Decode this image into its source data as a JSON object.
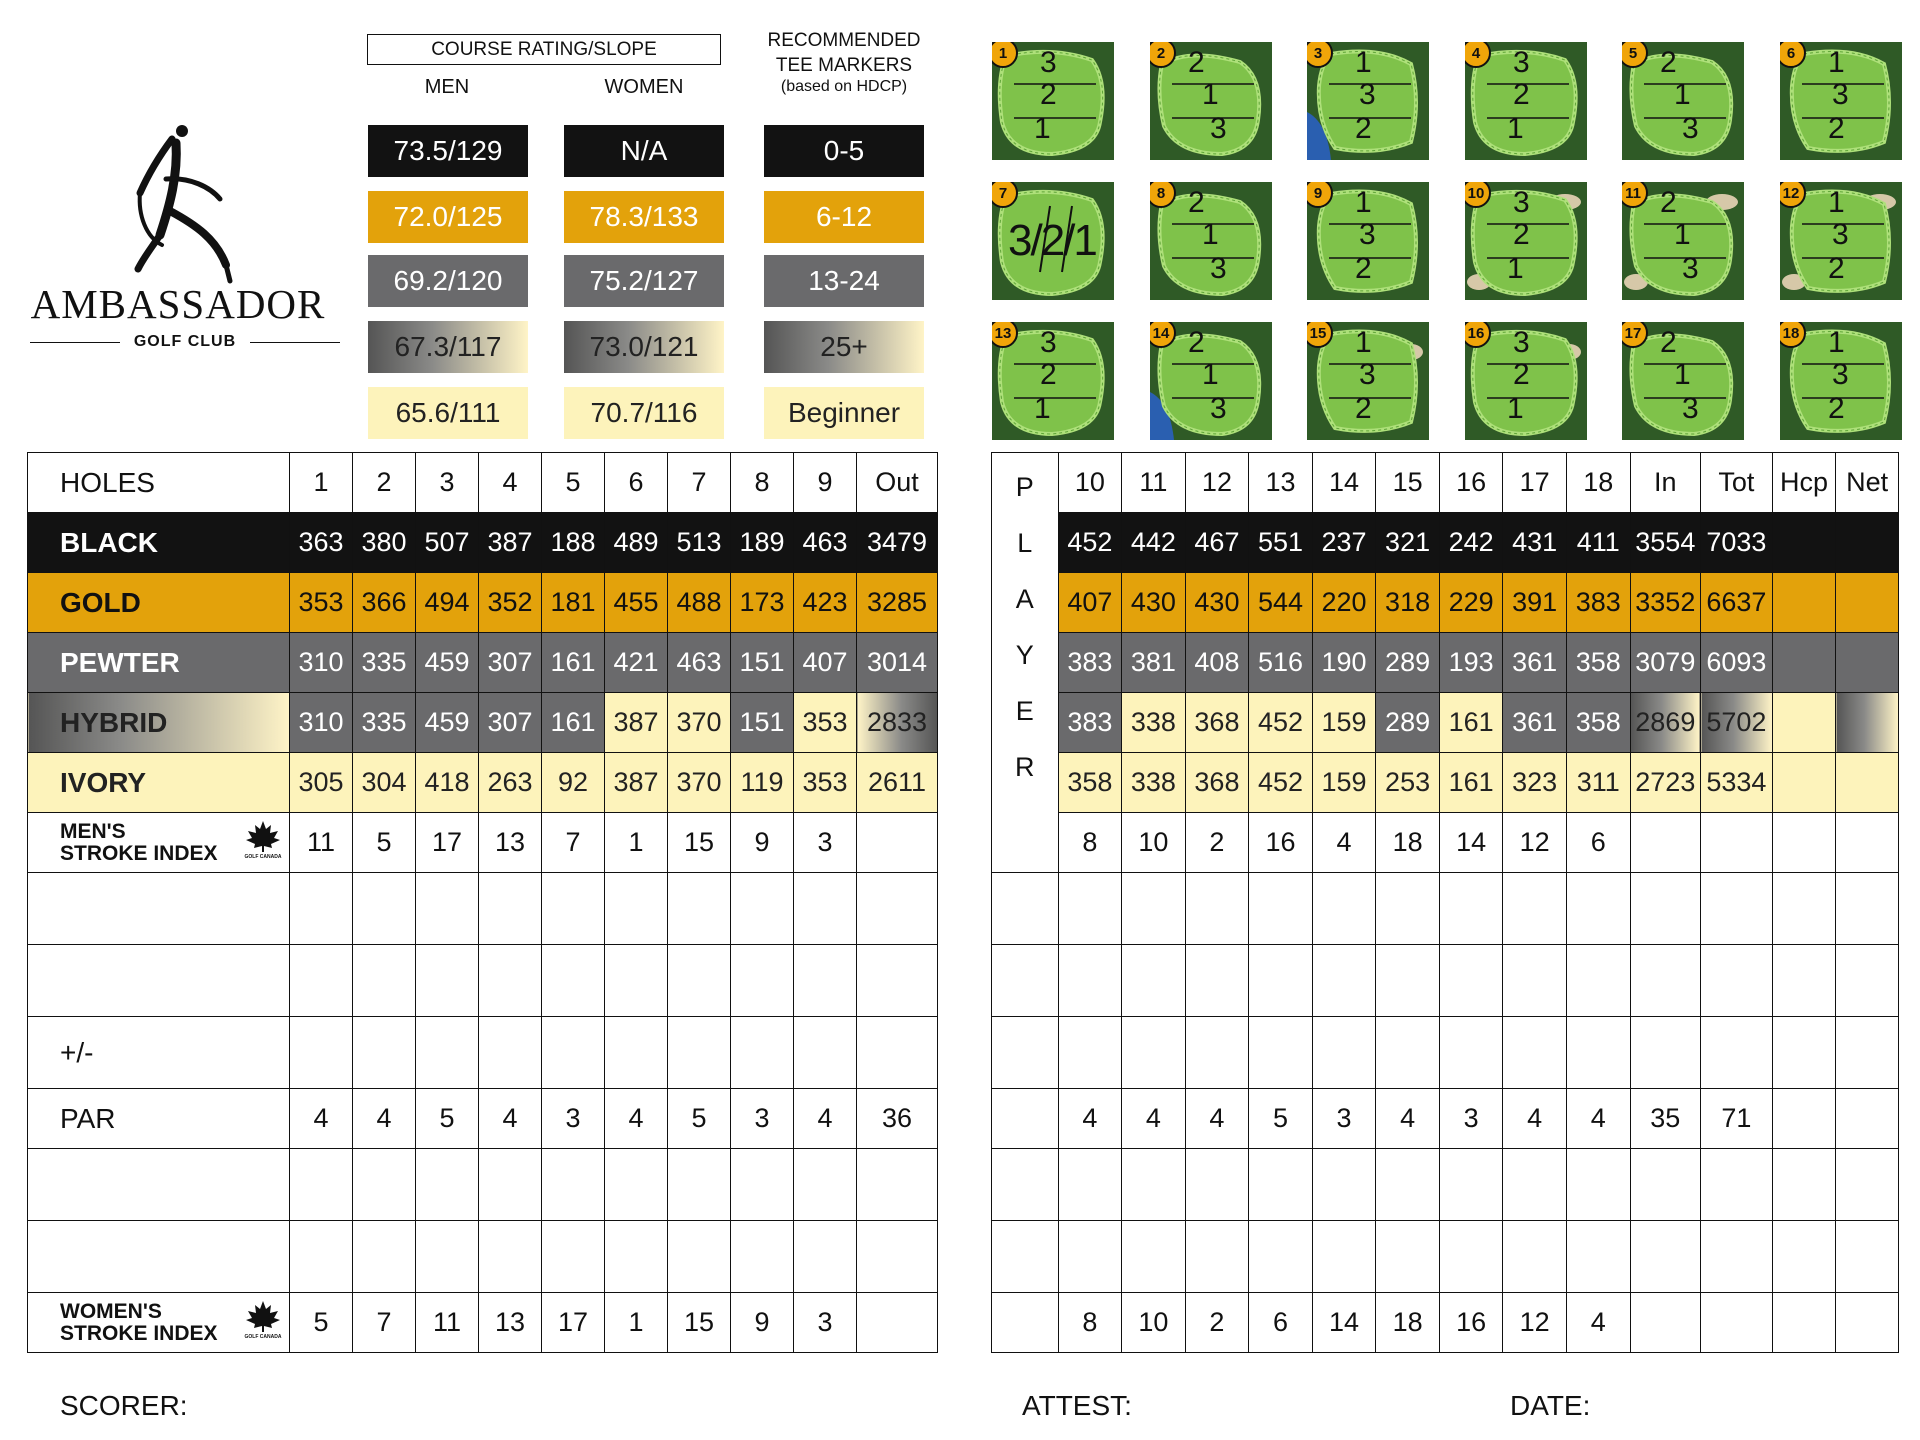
{
  "logo": {
    "name": "AMBASSADOR",
    "subtitle": "GOLF CLUB"
  },
  "ratings": {
    "box_title": "COURSE RATING/SLOPE",
    "men_label": "MEN",
    "women_label": "WOMEN",
    "rec_line1": "RECOMMENDED",
    "rec_line2": "TEE MARKERS",
    "rec_line3": "(based on HDCP)",
    "rows": [
      {
        "men": "73.5/129",
        "women": "N/A",
        "rec": "0-5"
      },
      {
        "men": "72.0/125",
        "women": "78.3/133",
        "rec": "6-12"
      },
      {
        "men": "69.2/120",
        "women": "75.2/127",
        "rec": "13-24"
      },
      {
        "men": "67.3/117",
        "women": "73.0/121",
        "rec": "25+"
      },
      {
        "men": "65.6/111",
        "women": "70.7/116",
        "rec": "Beginner"
      }
    ]
  },
  "greens": [
    {
      "n": "1",
      "pins": [
        "3",
        "2",
        "1"
      ]
    },
    {
      "n": "2",
      "pins": [
        "2",
        "1",
        "3"
      ]
    },
    {
      "n": "3",
      "pins": [
        "1",
        "3",
        "2"
      ]
    },
    {
      "n": "4",
      "pins": [
        "3",
        "2",
        "1"
      ]
    },
    {
      "n": "5",
      "pins": [
        "2",
        "1",
        "3"
      ]
    },
    {
      "n": "6",
      "pins": [
        "1",
        "3",
        "2"
      ]
    },
    {
      "n": "7",
      "pins": [
        "3/2/1"
      ]
    },
    {
      "n": "8",
      "pins": [
        "2",
        "1",
        "3"
      ]
    },
    {
      "n": "9",
      "pins": [
        "1",
        "3",
        "2"
      ]
    },
    {
      "n": "10",
      "pins": [
        "3",
        "2",
        "1"
      ]
    },
    {
      "n": "11",
      "pins": [
        "2",
        "1",
        "3"
      ]
    },
    {
      "n": "12",
      "pins": [
        "1",
        "3",
        "2"
      ]
    },
    {
      "n": "13",
      "pins": [
        "3",
        "2",
        "1"
      ]
    },
    {
      "n": "14",
      "pins": [
        "2",
        "1",
        "3"
      ]
    },
    {
      "n": "15",
      "pins": [
        "1",
        "3",
        "2"
      ]
    },
    {
      "n": "16",
      "pins": [
        "3",
        "2",
        "1"
      ]
    },
    {
      "n": "17",
      "pins": [
        "2",
        "1",
        "3"
      ]
    },
    {
      "n": "18",
      "pins": [
        "1",
        "3",
        "2"
      ]
    }
  ],
  "front": {
    "headers": [
      "HOLES",
      "1",
      "2",
      "3",
      "4",
      "5",
      "6",
      "7",
      "8",
      "9",
      "Out"
    ],
    "black": {
      "label": "BLACK",
      "values": [
        "363",
        "380",
        "507",
        "387",
        "188",
        "489",
        "513",
        "189",
        "463",
        "3479"
      ]
    },
    "gold": {
      "label": "GOLD",
      "values": [
        "353",
        "366",
        "494",
        "352",
        "181",
        "455",
        "488",
        "173",
        "423",
        "3285"
      ]
    },
    "pewter": {
      "label": "PEWTER",
      "values": [
        "310",
        "335",
        "459",
        "307",
        "161",
        "421",
        "463",
        "151",
        "407",
        "3014"
      ]
    },
    "hybrid": {
      "label": "HYBRID",
      "values": [
        "310",
        "335",
        "459",
        "307",
        "161",
        "387",
        "370",
        "151",
        "353",
        "2833"
      ]
    },
    "ivory": {
      "label": "IVORY",
      "values": [
        "305",
        "304",
        "418",
        "263",
        "92",
        "387",
        "370",
        "119",
        "353",
        "2611"
      ]
    },
    "mens_si": {
      "label1": "MEN'S",
      "label2": "STROKE INDEX",
      "values": [
        "11",
        "5",
        "17",
        "13",
        "7",
        "1",
        "15",
        "9",
        "3",
        ""
      ]
    },
    "plusminus_label": "+/-",
    "par": {
      "label": "PAR",
      "values": [
        "4",
        "4",
        "5",
        "4",
        "3",
        "4",
        "5",
        "3",
        "4",
        "36"
      ]
    },
    "womens_si": {
      "label1": "WOMEN'S",
      "label2": "STROKE INDEX",
      "values": [
        "5",
        "7",
        "11",
        "13",
        "17",
        "1",
        "15",
        "9",
        "3",
        ""
      ]
    }
  },
  "back": {
    "player_letters": [
      "P",
      "L",
      "A",
      "Y",
      "E",
      "R"
    ],
    "headers": [
      "10",
      "11",
      "12",
      "13",
      "14",
      "15",
      "16",
      "17",
      "18",
      "In",
      "Tot",
      "Hcp",
      "Net"
    ],
    "black": [
      "452",
      "442",
      "467",
      "551",
      "237",
      "321",
      "242",
      "431",
      "411",
      "3554",
      "7033",
      "",
      ""
    ],
    "gold": [
      "407",
      "430",
      "430",
      "544",
      "220",
      "318",
      "229",
      "391",
      "383",
      "3352",
      "6637",
      "",
      ""
    ],
    "pewter": [
      "383",
      "381",
      "408",
      "516",
      "190",
      "289",
      "193",
      "361",
      "358",
      "3079",
      "6093",
      "",
      ""
    ],
    "hybrid": [
      "383",
      "338",
      "368",
      "452",
      "159",
      "289",
      "161",
      "361",
      "358",
      "2869",
      "5702",
      "",
      ""
    ],
    "ivory": [
      "358",
      "338",
      "368",
      "452",
      "159",
      "253",
      "161",
      "323",
      "311",
      "2723",
      "5334",
      "",
      ""
    ],
    "mens_si": [
      "8",
      "10",
      "2",
      "16",
      "4",
      "18",
      "14",
      "12",
      "6",
      "",
      "",
      "",
      ""
    ],
    "par": [
      "4",
      "4",
      "4",
      "5",
      "3",
      "4",
      "3",
      "4",
      "4",
      "35",
      "71",
      "",
      ""
    ],
    "womens_si": [
      "8",
      "10",
      "2",
      "6",
      "14",
      "18",
      "16",
      "12",
      "4",
      "",
      "",
      "",
      ""
    ]
  },
  "footer": {
    "scorer": "SCORER:",
    "attest": "ATTEST:",
    "date": "DATE:"
  },
  "colors": {
    "black": "#121212",
    "gold": "#e3a20b",
    "pewter": "#6a6a6c",
    "ivory": "#fdf3bb"
  },
  "icons": {
    "golf_canada": "maple-leaf-icon",
    "logo_figure": "golfer-figure-icon"
  }
}
